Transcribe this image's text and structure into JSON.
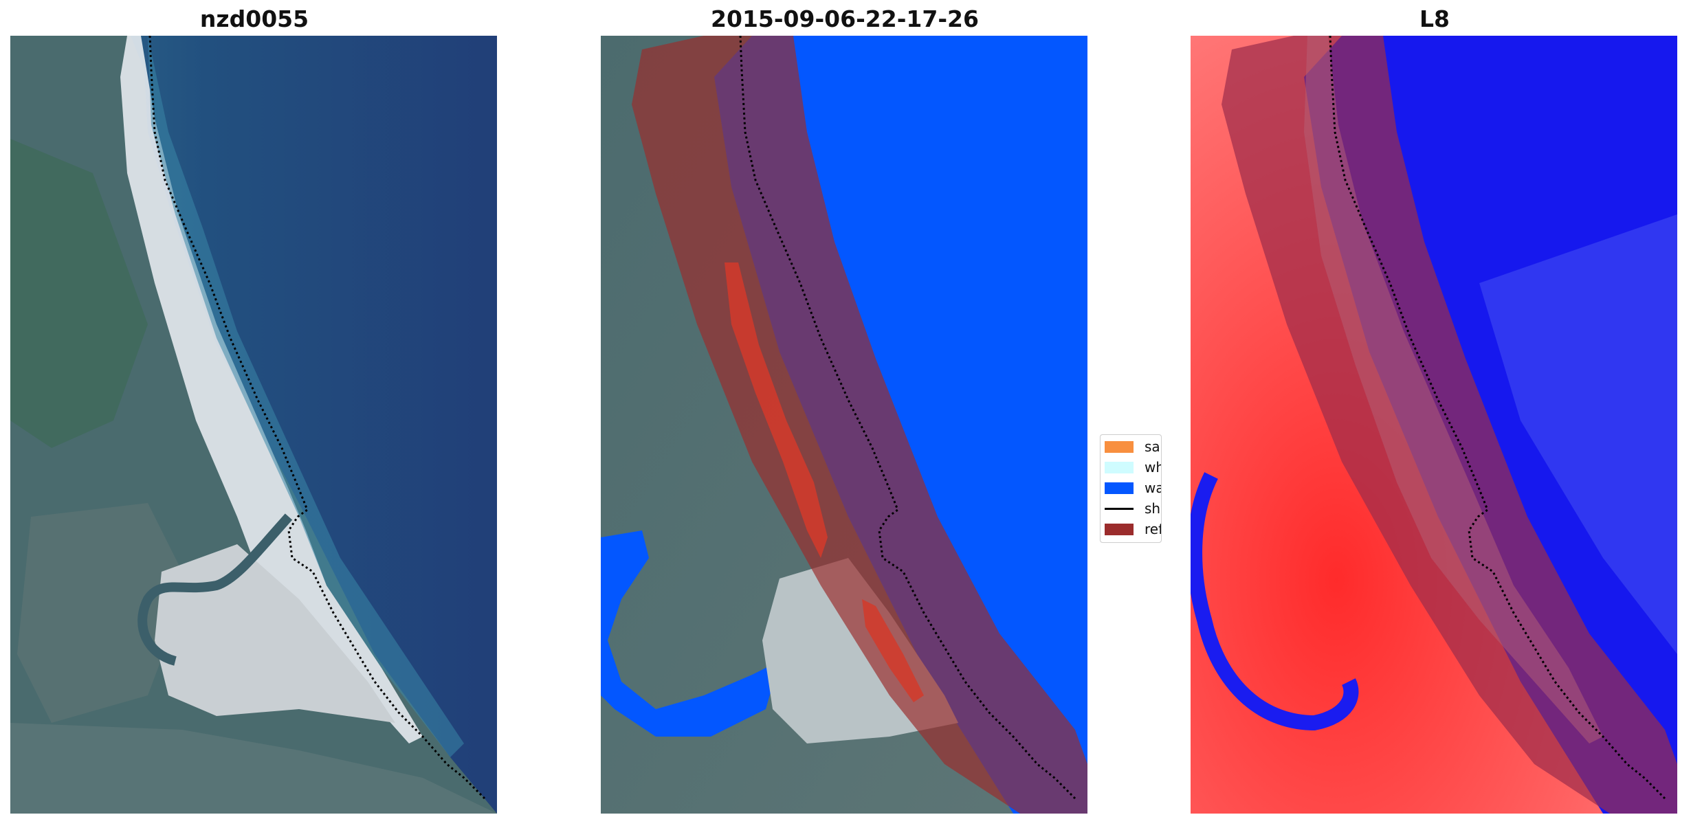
{
  "panels": [
    {
      "title": "nzd0055"
    },
    {
      "title": "2015-09-06-22-17-26"
    },
    {
      "title": "L8"
    }
  ],
  "legend": {
    "items": [
      {
        "label": "sand",
        "color": "#f88f3f",
        "kind": "patch"
      },
      {
        "label": "whitew",
        "color": "#cffcff",
        "kind": "patch"
      },
      {
        "label": "water",
        "color": "#0357ff",
        "kind": "patch"
      },
      {
        "label": "shorel",
        "color": "#000000",
        "kind": "line"
      },
      {
        "label": "referen",
        "color": "#9b2c2c",
        "kind": "patch"
      }
    ]
  },
  "colors": {
    "ocean_rgb": "#244e88",
    "land_rgb": "#4b6a6e",
    "beach_rgb": "#e8ecef",
    "classified_water": "#0357ff",
    "reference_buffer": "#9b2c2c",
    "index_water": "#0a14f0",
    "index_land": "#ff4a4a"
  }
}
